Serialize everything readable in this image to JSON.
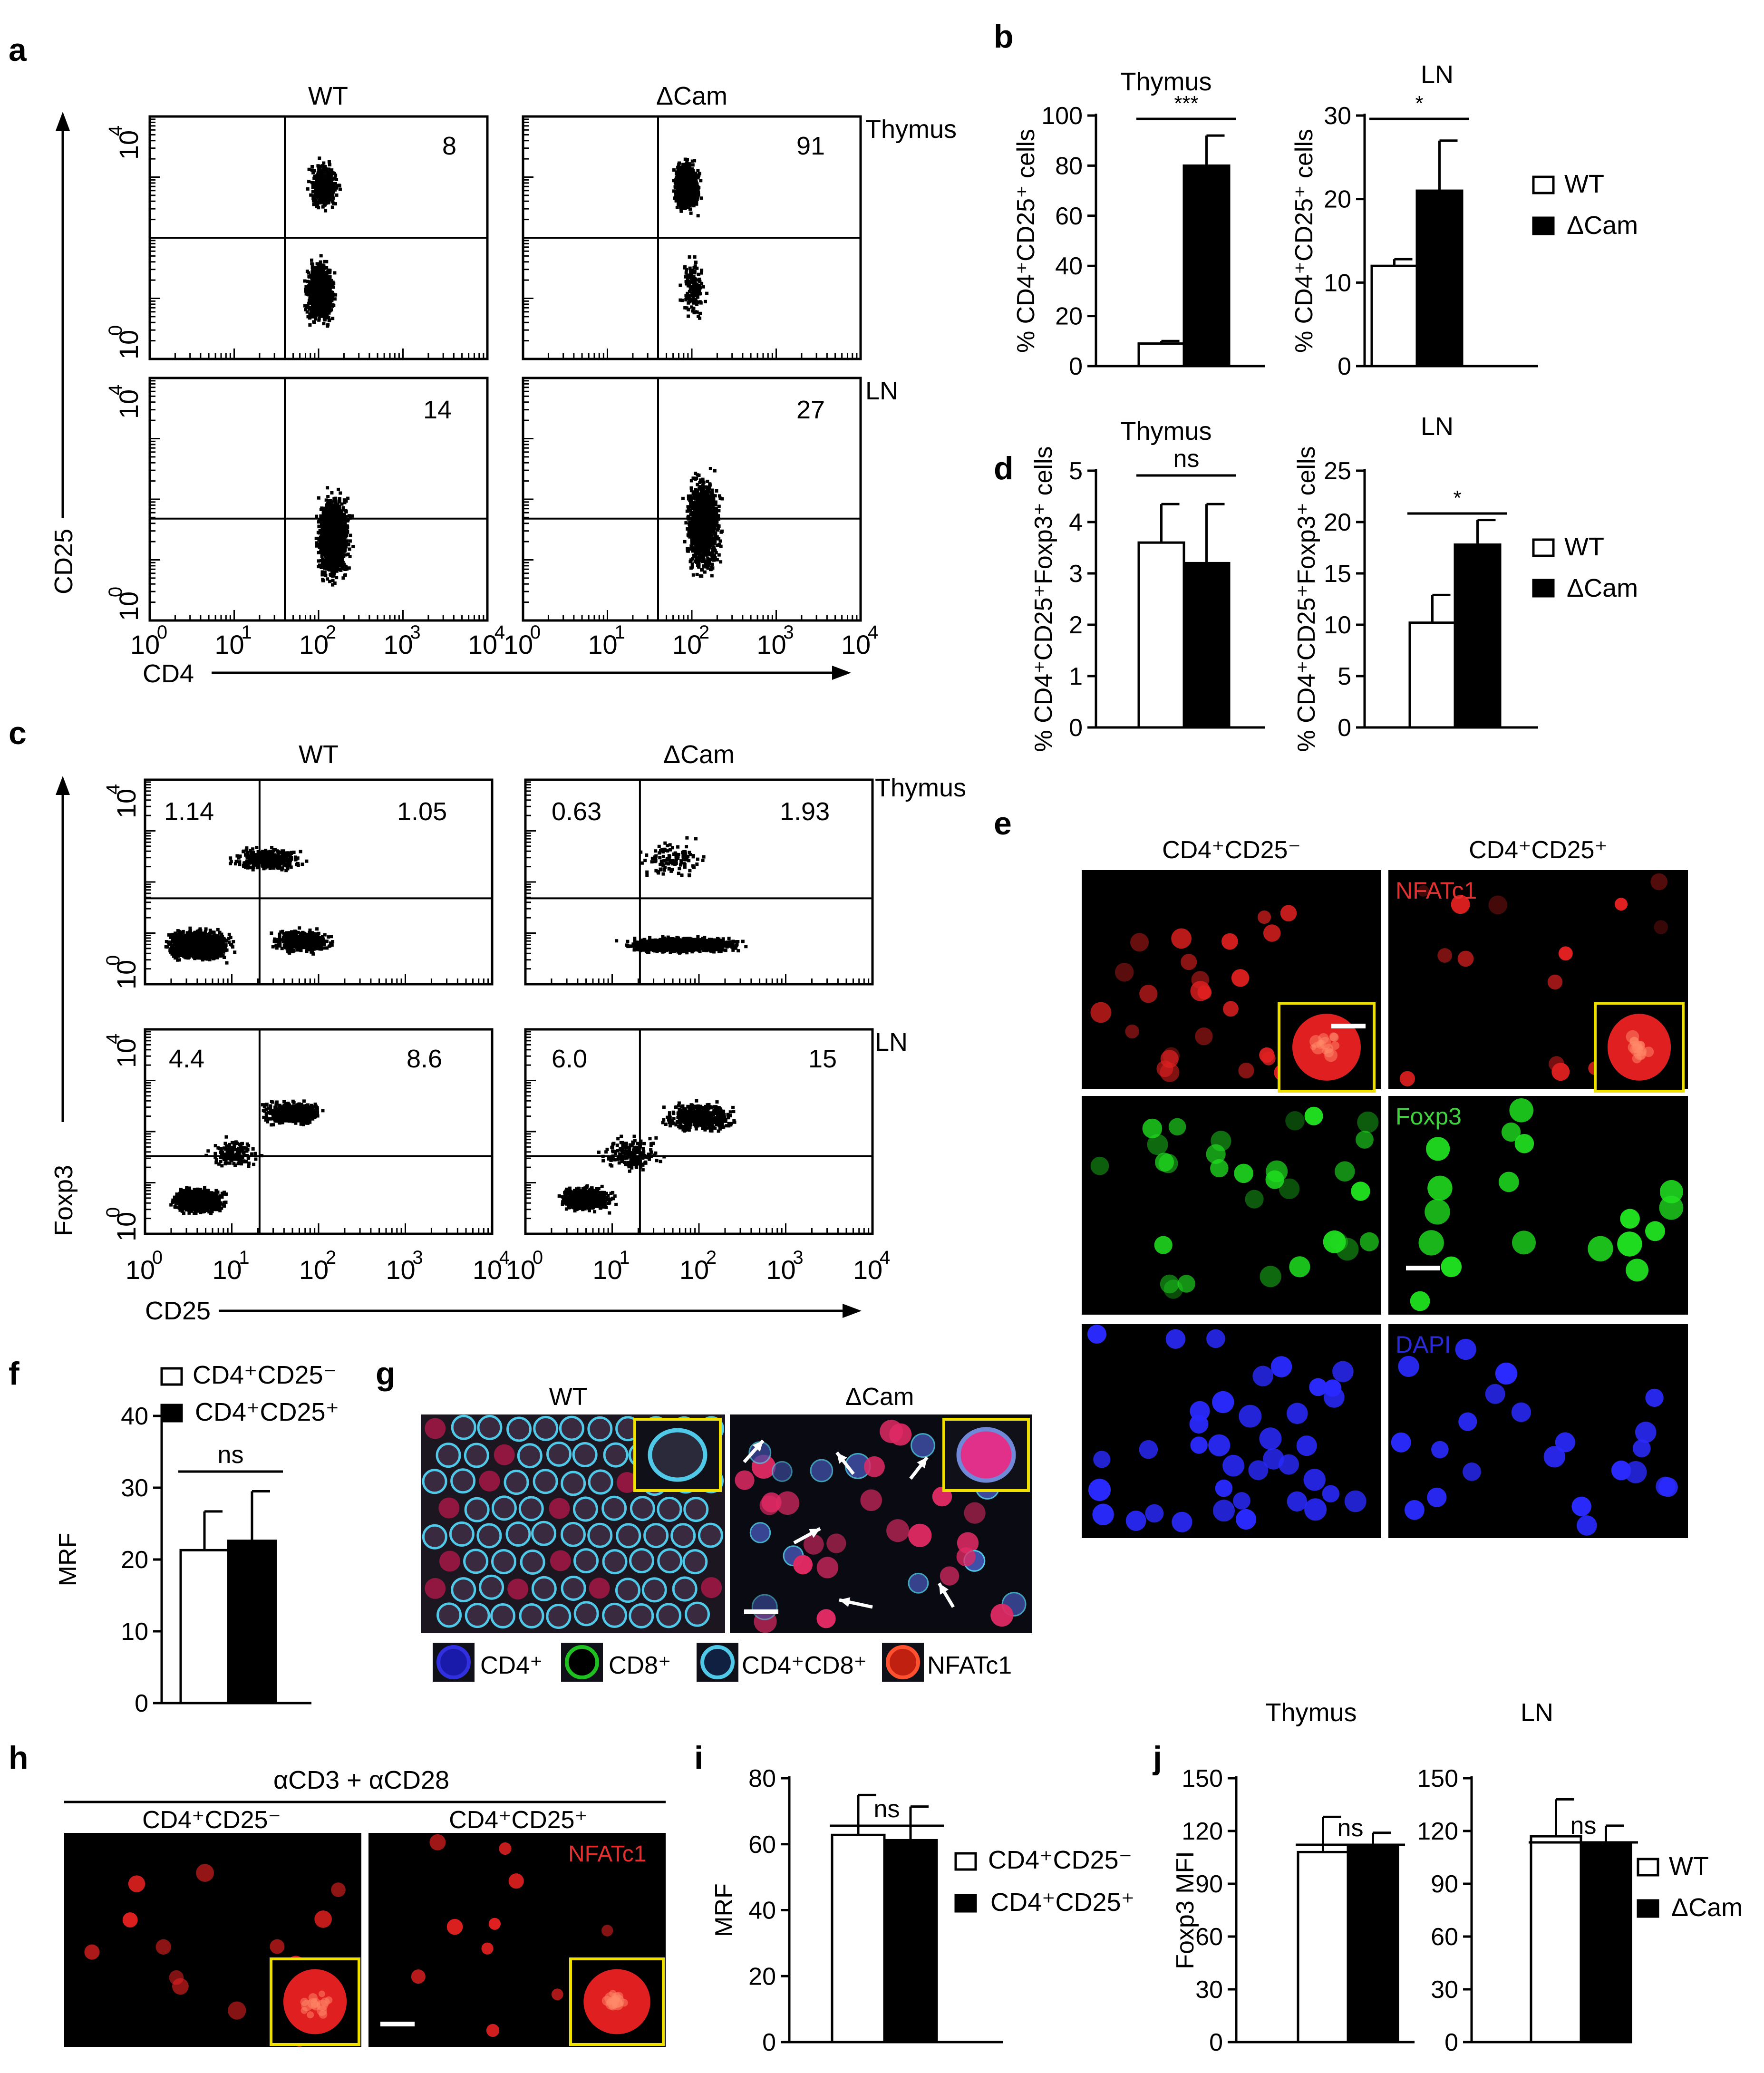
{
  "panel_letters": {
    "a": "a",
    "b": "b",
    "c": "c",
    "d": "d",
    "e": "e",
    "f": "f",
    "g": "g",
    "h": "h",
    "i": "i",
    "j": "j"
  },
  "panel_a": {
    "col_titles": [
      "WT",
      "ΔCam"
    ],
    "row_labels": [
      "Thymus",
      "LN"
    ],
    "x_axis_label": "CD4",
    "y_axis_label": "CD25",
    "tick_labels": [
      "10",
      "10",
      "10",
      "10",
      "10"
    ],
    "tick_exponents": [
      "0",
      "1",
      "2",
      "3",
      "4"
    ],
    "quadrant_values": [
      [
        "8",
        "91"
      ],
      [
        "14",
        "27"
      ]
    ]
  },
  "panel_c": {
    "col_titles": [
      "WT",
      "ΔCam"
    ],
    "row_labels": [
      "Thymus",
      "LN"
    ],
    "x_axis_label": "CD25",
    "y_axis_label": "Foxp3",
    "tick_labels": [
      "10",
      "10",
      "10",
      "10",
      "10"
    ],
    "tick_exponents": [
      "0",
      "1",
      "2",
      "3",
      "4"
    ],
    "quadrant_values": [
      [
        "1.14",
        "1.05",
        "0.63",
        "1.93"
      ],
      [
        "4.4",
        "8.6",
        "6.0",
        "15"
      ]
    ]
  },
  "panel_e": {
    "col_titles": [
      "CD4⁺CD25⁻",
      "CD4⁺CD25⁺"
    ],
    "stain_labels": [
      "NFATc1",
      "Foxp3",
      "DAPI"
    ]
  },
  "panel_g": {
    "col_titles": [
      "WT",
      "ΔCam"
    ],
    "legend": [
      "CD4⁺",
      "CD8⁺",
      "CD4⁺CD8⁺",
      "NFATc1"
    ]
  },
  "panel_h": {
    "treatment": "αCD3 + αCD28",
    "col_titles": [
      "CD4⁺CD25⁻",
      "CD4⁺CD25⁺"
    ],
    "stain_label": "NFATc1"
  },
  "legend_genotype": {
    "wt": "WT",
    "dcam": "ΔCam"
  },
  "legend_cells": {
    "neg": "CD4⁺CD25⁻",
    "pos": "CD4⁺CD25⁺"
  },
  "colors": {
    "wt_bar": "#ffffff",
    "dcam_bar": "#000000",
    "inset_border": "#f0e000",
    "nfatc1": "#e02020",
    "foxp3": "#20e020",
    "dapi": "#2a2aff",
    "cd4_membrane": "#50c8e8"
  },
  "chart_data": [
    {
      "id": "b-thymus",
      "type": "bar",
      "title": "Thymus",
      "ylabel": "% CD4⁺CD25⁺ cells",
      "ylim": [
        0,
        100
      ],
      "ticks": [
        0,
        20,
        40,
        60,
        80,
        100
      ],
      "tick_labels": [
        "0",
        "20",
        "40",
        "60",
        "80",
        "100"
      ],
      "categories": [
        "WT",
        "ΔCam"
      ],
      "values": [
        9,
        80
      ],
      "errors": [
        1,
        12
      ],
      "significance": "***"
    },
    {
      "id": "b-ln",
      "type": "bar",
      "title": "LN",
      "ylabel": "% CD4⁺CD25⁺ cells",
      "ylim": [
        0,
        30
      ],
      "ticks": [
        0,
        10,
        20,
        30
      ],
      "tick_labels": [
        "0",
        "10",
        "20",
        "30"
      ],
      "categories": [
        "WT",
        "ΔCam"
      ],
      "values": [
        12,
        21
      ],
      "errors": [
        0.8,
        6
      ],
      "significance": "*"
    },
    {
      "id": "d-thymus",
      "type": "bar",
      "title": "Thymus",
      "ylabel": "% CD4⁺CD25⁺Foxp3⁺ cells",
      "ylim": [
        0,
        5
      ],
      "ticks": [
        0,
        1,
        2,
        3,
        4,
        5
      ],
      "tick_labels": [
        "0",
        "1",
        "2",
        "3",
        "4",
        "5"
      ],
      "categories": [
        "WT",
        "ΔCam"
      ],
      "values": [
        3.6,
        3.2
      ],
      "errors": [
        0.75,
        1.15
      ],
      "significance": "ns"
    },
    {
      "id": "d-ln",
      "type": "bar",
      "title": "LN",
      "ylabel": "% CD4⁺CD25⁺Foxp3⁺ cells",
      "ylim": [
        0,
        25
      ],
      "ticks": [
        0,
        5,
        10,
        15,
        20,
        25
      ],
      "tick_labels": [
        "0",
        "5",
        "10",
        "15",
        "20",
        "25"
      ],
      "categories": [
        "WT",
        "ΔCam"
      ],
      "values": [
        10.2,
        17.8
      ],
      "errors": [
        2.7,
        2.4
      ],
      "significance": "*"
    },
    {
      "id": "f",
      "type": "bar",
      "title": "",
      "ylabel": "MRF",
      "ylim": [
        0,
        40
      ],
      "ticks": [
        0,
        10,
        20,
        30,
        40
      ],
      "tick_labels": [
        "0",
        "10",
        "20",
        "30",
        "40"
      ],
      "categories": [
        "CD4⁺CD25⁻",
        "CD4⁺CD25⁺"
      ],
      "values": [
        21.3,
        22.6
      ],
      "errors": [
        5.4,
        6.9
      ],
      "significance": "ns"
    },
    {
      "id": "i",
      "type": "bar",
      "title": "",
      "ylabel": "MRF",
      "ylim": [
        0,
        80
      ],
      "ticks": [
        0,
        20,
        40,
        60,
        80
      ],
      "tick_labels": [
        "0",
        "20",
        "40",
        "60",
        "80"
      ],
      "categories": [
        "CD4⁺CD25⁻",
        "CD4⁺CD25⁺"
      ],
      "values": [
        62.8,
        61.2
      ],
      "errors": [
        12.1,
        10.2
      ],
      "significance": "ns"
    },
    {
      "id": "j-thymus",
      "type": "bar",
      "title": "Thymus",
      "ylabel": "Foxp3 MFI",
      "ylim": [
        0,
        150
      ],
      "ticks": [
        0,
        30,
        60,
        90,
        120,
        150
      ],
      "tick_labels": [
        "0",
        "30",
        "60",
        "90",
        "120",
        "150"
      ],
      "categories": [
        "WT",
        "ΔCam"
      ],
      "values": [
        108,
        111
      ],
      "errors": [
        20,
        8
      ],
      "significance": "ns"
    },
    {
      "id": "j-ln",
      "type": "bar",
      "title": "LN",
      "ylabel": "",
      "ylim": [
        0,
        150
      ],
      "ticks": [
        0,
        30,
        60,
        90,
        120,
        150
      ],
      "tick_labels": [
        "0",
        "30",
        "60",
        "90",
        "120",
        "150"
      ],
      "categories": [
        "WT",
        "ΔCam"
      ],
      "values": [
        117,
        113
      ],
      "errors": [
        21,
        10
      ],
      "significance": "ns"
    }
  ]
}
